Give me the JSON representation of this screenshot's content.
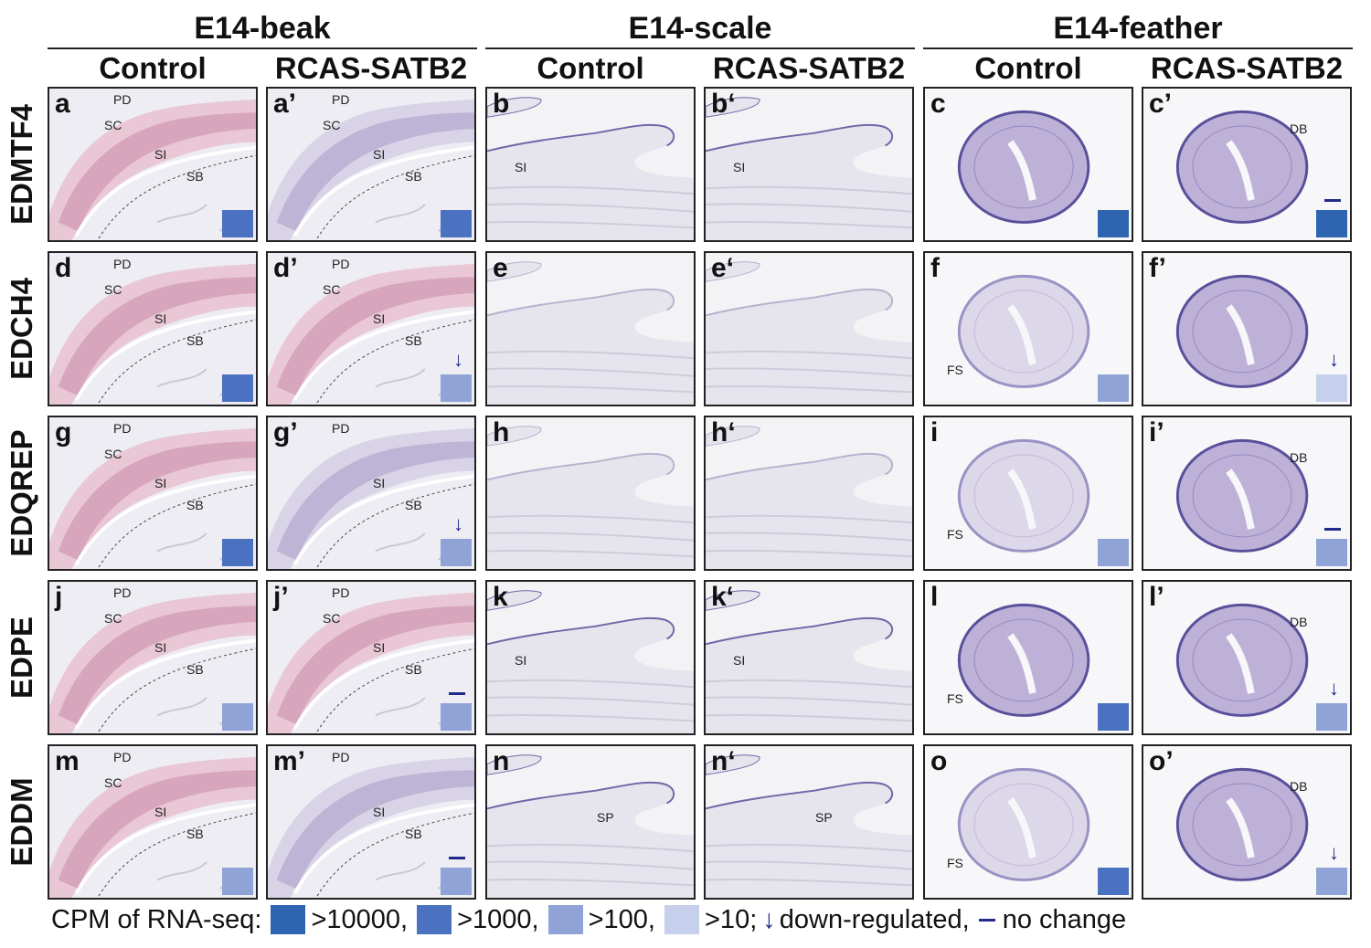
{
  "colors": {
    "c10000": "#2e64b0",
    "c1000": "#4b72c0",
    "c100": "#8fa3d6",
    "c10": "#c6d0ec",
    "indicator": "#1f2a8a"
  },
  "groups": [
    "E14-beak",
    "E14-scale",
    "E14-feather"
  ],
  "columns": [
    "Control",
    "RCAS-SATB2",
    "Control",
    "RCAS-SATB2",
    "Control",
    "RCAS-SATB2"
  ],
  "rows": [
    {
      "gene": "EDMTF4",
      "panels": [
        {
          "label": "a",
          "level": "c1000",
          "indicator": "",
          "annotations": [
            "PD",
            "SC",
            "SI",
            "SB"
          ]
        },
        {
          "label": "a’",
          "level": "c1000",
          "indicator": "",
          "annotations": [
            "PD",
            "SC",
            "SI",
            "SB"
          ]
        },
        {
          "label": "b",
          "annotations": [
            "SI"
          ]
        },
        {
          "label": "b‘",
          "annotations": [
            "SI"
          ]
        },
        {
          "label": "c",
          "level": "c10000",
          "indicator": "",
          "annotations": []
        },
        {
          "label": "c’",
          "level": "c10000",
          "indicator": "dash",
          "annotations": [
            "DB"
          ]
        }
      ]
    },
    {
      "gene": "EDCH4",
      "panels": [
        {
          "label": "d",
          "level": "c1000",
          "indicator": "",
          "annotations": [
            "PD",
            "SC",
            "SI",
            "SB"
          ]
        },
        {
          "label": "d’",
          "level": "c100",
          "indicator": "arrow",
          "annotations": [
            "PD",
            "SC",
            "SI",
            "SB"
          ]
        },
        {
          "label": "e",
          "annotations": []
        },
        {
          "label": "e‘",
          "annotations": []
        },
        {
          "label": "f",
          "level": "c100",
          "indicator": "",
          "annotations": [
            "FS"
          ]
        },
        {
          "label": "f’",
          "level": "c10",
          "indicator": "arrow",
          "annotations": []
        }
      ]
    },
    {
      "gene": "EDQREP",
      "panels": [
        {
          "label": "g",
          "level": "c1000",
          "indicator": "",
          "annotations": [
            "PD",
            "SC",
            "SI",
            "SB"
          ]
        },
        {
          "label": "g’",
          "level": "c100",
          "indicator": "arrow",
          "annotations": [
            "PD",
            "SI",
            "SB"
          ]
        },
        {
          "label": "h",
          "annotations": []
        },
        {
          "label": "h‘",
          "annotations": []
        },
        {
          "label": "i",
          "level": "c100",
          "indicator": "",
          "annotations": [
            "FS"
          ]
        },
        {
          "label": "i’",
          "level": "c100",
          "indicator": "dash",
          "annotations": [
            "DB"
          ]
        }
      ]
    },
    {
      "gene": "EDPE",
      "panels": [
        {
          "label": "j",
          "level": "c100",
          "indicator": "",
          "annotations": [
            "SC",
            "PD",
            "SI",
            "SB"
          ]
        },
        {
          "label": "j’",
          "level": "c100",
          "indicator": "dash",
          "annotations": [
            "SC",
            "PD",
            "SI",
            "SB"
          ]
        },
        {
          "label": "k",
          "annotations": [
            "SI"
          ]
        },
        {
          "label": "k‘",
          "annotations": [
            "SI"
          ]
        },
        {
          "label": "l",
          "level": "c1000",
          "indicator": "",
          "annotations": [
            "FS"
          ]
        },
        {
          "label": "l’",
          "level": "c100",
          "indicator": "arrow",
          "annotations": [
            "DB"
          ]
        }
      ]
    },
    {
      "gene": "EDDM",
      "panels": [
        {
          "label": "m",
          "level": "c100",
          "indicator": "",
          "annotations": [
            "SC",
            "PD",
            "SI",
            "SB"
          ]
        },
        {
          "label": "m’",
          "level": "c100",
          "indicator": "dash",
          "annotations": [
            "PD",
            "SI",
            "SB"
          ]
        },
        {
          "label": "n",
          "annotations": [
            "SP"
          ]
        },
        {
          "label": "n‘",
          "annotations": [
            "SP"
          ]
        },
        {
          "label": "o",
          "level": "c1000",
          "indicator": "",
          "annotations": [
            "FS"
          ]
        },
        {
          "label": "o’",
          "level": "c100",
          "indicator": "arrow",
          "annotations": [
            "DB"
          ]
        }
      ]
    }
  ],
  "legend": {
    "prefix": "CPM of RNA-seq:",
    "items": [
      {
        "level": "c10000",
        "text": ">10000,"
      },
      {
        "level": "c1000",
        "text": ">1000,"
      },
      {
        "level": "c100",
        "text": ">100,"
      },
      {
        "level": "c10",
        "text": ">10;"
      }
    ],
    "arrow_glyph": "↓",
    "down_text": "down-regulated,",
    "nochange_text": "no change"
  }
}
